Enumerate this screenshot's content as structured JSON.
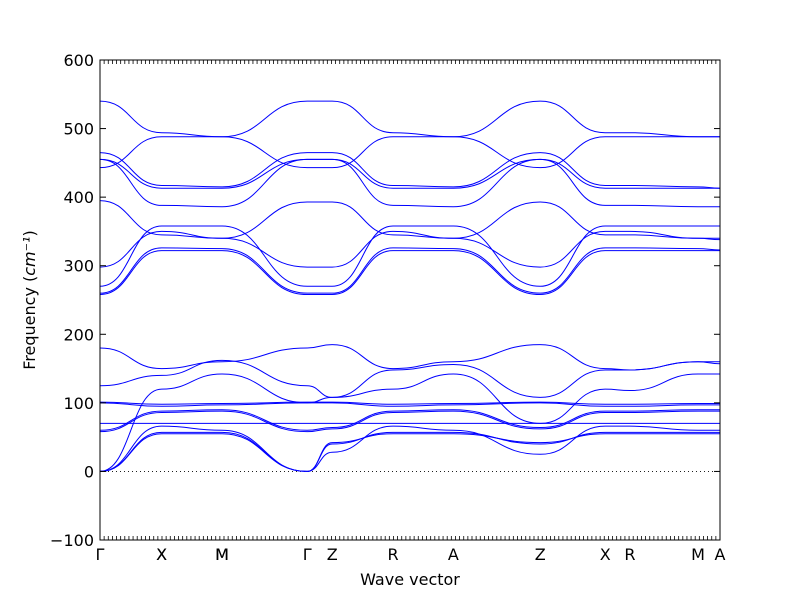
{
  "chart_data": {
    "type": "line",
    "title": "",
    "xlabel": "Wave vector",
    "ylabel": "Frequency",
    "ylabel_unit": "cm⁻¹",
    "ylim": [
      -100,
      600
    ],
    "yticks": [
      -100,
      0,
      100,
      200,
      300,
      400,
      500,
      600
    ],
    "x_range": [
      0,
      1
    ],
    "high_symmetry_points": [
      {
        "label": "Γ",
        "x": 0.0
      },
      {
        "label": "X",
        "x": 0.0994
      },
      {
        "label": "X",
        "x": 0.0994
      },
      {
        "label": "M",
        "x": 0.1968
      },
      {
        "label": "M",
        "x": 0.1968
      },
      {
        "label": "Γ",
        "x": 0.3342
      },
      {
        "label": "Z",
        "x": 0.3745
      },
      {
        "label": "R",
        "x": 0.4726
      },
      {
        "label": "A",
        "x": 0.57
      },
      {
        "label": "Z",
        "x": 0.71
      },
      {
        "label": "X",
        "x": 0.8148
      },
      {
        "label": "R",
        "x": 0.8548
      },
      {
        "label": "M",
        "x": 0.9645
      },
      {
        "label": "A",
        "x": 1.0
      }
    ],
    "zero_line": true,
    "line_color": "#0000ff",
    "branches": [
      {
        "x": [
          0.0,
          0.0994,
          0.1968,
          0.3342,
          0.3745,
          0.4726,
          0.57,
          0.71,
          0.8148,
          0.8548,
          0.9645,
          1.0
        ],
        "y": [
          540,
          494,
          488,
          540,
          540,
          494,
          488,
          540,
          494,
          494,
          488,
          488
        ]
      },
      {
        "x": [
          0.0,
          0.0994,
          0.1968,
          0.3342,
          0.3745,
          0.4726,
          0.57,
          0.71,
          0.8148,
          0.8548,
          0.9645,
          1.0
        ],
        "y": [
          443,
          488,
          488,
          443,
          443,
          488,
          488,
          443,
          488,
          488,
          488,
          488
        ]
      },
      {
        "x": [
          0.0,
          0.0994,
          0.1968,
          0.3342,
          0.3745,
          0.4726,
          0.57,
          0.71,
          0.8148,
          0.8548,
          0.9645,
          1.0
        ],
        "y": [
          465,
          417,
          415,
          465,
          465,
          417,
          415,
          465,
          417,
          417,
          415,
          413
        ]
      },
      {
        "x": [
          0.0,
          0.0994,
          0.1968,
          0.3342,
          0.3745,
          0.4726,
          0.57,
          0.71,
          0.8148,
          0.8548,
          0.9645,
          1.0
        ],
        "y": [
          455,
          413,
          413,
          455,
          455,
          413,
          413,
          455,
          413,
          413,
          413,
          413
        ]
      },
      {
        "x": [
          0.0,
          0.0994,
          0.1968,
          0.3342,
          0.3745,
          0.4726,
          0.57,
          0.71,
          0.8148,
          0.8548,
          0.9645,
          1.0
        ],
        "y": [
          455,
          388,
          386,
          455,
          455,
          388,
          386,
          455,
          388,
          388,
          386,
          386
        ]
      },
      {
        "x": [
          0.0,
          0.0994,
          0.1968,
          0.3342,
          0.3745,
          0.4726,
          0.57,
          0.71,
          0.8148,
          0.8548,
          0.9645,
          1.0
        ],
        "y": [
          395,
          345,
          340,
          393,
          393,
          345,
          340,
          393,
          345,
          345,
          340,
          338
        ]
      },
      {
        "x": [
          0.0,
          0.0994,
          0.1968,
          0.3342,
          0.3745,
          0.4726,
          0.57,
          0.71,
          0.8148,
          0.8548,
          0.9645,
          1.0
        ],
        "y": [
          298,
          350,
          340,
          298,
          298,
          350,
          340,
          298,
          350,
          350,
          340,
          340
        ]
      },
      {
        "x": [
          0.0,
          0.0994,
          0.1968,
          0.3342,
          0.3745,
          0.4726,
          0.57,
          0.71,
          0.8148,
          0.8548,
          0.9645,
          1.0
        ],
        "y": [
          270,
          358,
          358,
          270,
          270,
          358,
          358,
          270,
          358,
          358,
          358,
          358
        ]
      },
      {
        "x": [
          0.0,
          0.0994,
          0.1968,
          0.3342,
          0.3745,
          0.4726,
          0.57,
          0.71,
          0.8148,
          0.8548,
          0.9645,
          1.0
        ],
        "y": [
          260,
          326,
          325,
          260,
          260,
          326,
          325,
          260,
          326,
          326,
          325,
          323
        ]
      },
      {
        "x": [
          0.0,
          0.0994,
          0.1968,
          0.3342,
          0.3745,
          0.4726,
          0.57,
          0.71,
          0.8148,
          0.8548,
          0.9645,
          1.0
        ],
        "y": [
          258,
          322,
          322,
          258,
          258,
          322,
          322,
          258,
          322,
          322,
          322,
          322
        ]
      },
      {
        "x": [
          0.0,
          0.0994,
          0.1968,
          0.3342,
          0.3745,
          0.4726,
          0.57,
          0.71,
          0.8148,
          0.8548,
          0.9645,
          1.0
        ],
        "y": [
          180,
          150,
          160,
          180,
          185,
          150,
          160,
          185,
          150,
          148,
          160,
          160
        ]
      },
      {
        "x": [
          0.0,
          0.0994,
          0.1968,
          0.3342,
          0.3745,
          0.4726,
          0.57,
          0.71,
          0.8148,
          0.8548,
          0.9645,
          1.0
        ],
        "y": [
          125,
          140,
          162,
          125,
          108,
          148,
          156,
          108,
          148,
          148,
          160,
          157
        ]
      },
      {
        "x": [
          0.0,
          0.0994,
          0.1968,
          0.3342,
          0.3745,
          0.4726,
          0.57,
          0.71,
          0.8148,
          0.8548,
          0.9645,
          1.0
        ],
        "y": [
          0,
          120,
          142,
          100,
          108,
          120,
          142,
          70,
          120,
          118,
          142,
          142
        ]
      },
      {
        "x": [
          0.0,
          0.0994,
          0.1968,
          0.3342,
          0.3745,
          0.4726,
          0.57,
          0.71,
          0.8148,
          0.8548,
          0.9645,
          1.0
        ],
        "y": [
          101,
          98,
          99,
          101,
          101,
          98,
          99,
          101,
          98,
          98,
          99,
          99
        ]
      },
      {
        "x": [
          0.0,
          0.0994,
          0.1968,
          0.3342,
          0.3745,
          0.4726,
          0.57,
          0.71,
          0.8148,
          0.8548,
          0.9645,
          1.0
        ],
        "y": [
          100,
          95,
          97,
          100,
          100,
          95,
          97,
          100,
          95,
          95,
          97,
          97
        ]
      },
      {
        "x": [
          0.0,
          0.0994,
          0.1968,
          0.3342,
          0.3745,
          0.4726,
          0.57,
          0.71,
          0.8148,
          0.8548,
          0.9645,
          1.0
        ],
        "y": [
          60,
          88,
          90,
          60,
          64,
          88,
          90,
          64,
          88,
          88,
          90,
          90
        ]
      },
      {
        "x": [
          0.0,
          0.0994,
          0.1968,
          0.3342,
          0.3745,
          0.4726,
          0.57,
          0.71,
          0.8148,
          0.8548,
          0.9645,
          1.0
        ],
        "y": [
          58,
          86,
          88,
          58,
          62,
          86,
          88,
          62,
          86,
          86,
          88,
          88
        ]
      },
      {
        "x": [
          0.0,
          0.0994,
          0.1968,
          0.3342,
          0.3745,
          0.4726,
          0.57,
          0.71,
          0.8148,
          0.8548,
          0.9645,
          1.0
        ],
        "y": [
          70,
          70,
          70,
          70,
          70,
          70,
          70,
          70,
          70,
          70,
          70,
          70
        ]
      },
      {
        "x": [
          0.0,
          0.0994,
          0.1968,
          0.3342,
          0.3745,
          0.4726,
          0.57,
          0.71,
          0.8148,
          0.8548,
          0.9645,
          1.0
        ],
        "y": [
          0,
          66,
          60,
          0,
          28,
          66,
          60,
          25,
          66,
          66,
          60,
          60
        ]
      },
      {
        "x": [
          0.0,
          0.0994,
          0.1968,
          0.3342,
          0.3745,
          0.4726,
          0.57,
          0.71,
          0.8148,
          0.8548,
          0.9645,
          1.0
        ],
        "y": [
          0,
          57,
          57,
          0,
          40,
          57,
          57,
          40,
          57,
          57,
          57,
          57
        ]
      },
      {
        "x": [
          0.0,
          0.0994,
          0.1968,
          0.3342,
          0.3745,
          0.4726,
          0.57,
          0.71,
          0.8148,
          0.8548,
          0.9645,
          1.0
        ],
        "y": [
          0,
          55,
          55,
          0,
          42,
          55,
          55,
          42,
          55,
          55,
          55,
          55
        ]
      }
    ]
  }
}
